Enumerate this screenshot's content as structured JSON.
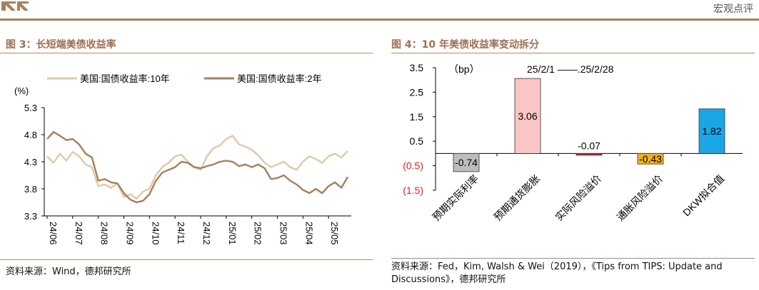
{
  "header": {
    "right_text": "宏观点评"
  },
  "figure_left": {
    "title": "图 3：长短端美债收益率",
    "source": "资料来源：Wind，德邦研究所"
  },
  "figure_right": {
    "title": "图 4：10 年美债收益率变动拆分",
    "source_line1": "资料来源：Fed，Kim, Walsh & Wei（2019），《Tips from TIPS: Update and",
    "source_line2": "Discussions》，德邦研究所"
  },
  "colors": {
    "accent": "#9b7052",
    "rule": "#a8805c",
    "series_10y": "#dfc9a5",
    "series_2y": "#a57f5b",
    "bar_grey": "#bdbdbd",
    "bar_pink": "#f9c5c5",
    "bar_red": "#e02020",
    "bar_orange": "#f2b21a",
    "bar_blue": "#1aa6e6"
  },
  "chart_data": [
    {
      "type": "line",
      "unit_label": "(%)",
      "ylim": [
        3.3,
        5.3
      ],
      "yticks": [
        "5.3",
        "4.8",
        "4.3",
        "3.8",
        "3.3"
      ],
      "ytick_values": [
        5.3,
        4.8,
        4.3,
        3.8,
        3.3
      ],
      "xticks": [
        "24/06",
        "24/07",
        "24/08",
        "24/09",
        "24/10",
        "24/11",
        "24/12",
        "25/01",
        "25/02",
        "25/03",
        "25/04",
        "25/05"
      ],
      "x": [
        "24/06",
        "24/06",
        "24/06",
        "24/06",
        "24/07",
        "24/07",
        "24/07",
        "24/07",
        "24/08",
        "24/08",
        "24/08",
        "24/08",
        "24/09",
        "24/09",
        "24/09",
        "24/09",
        "24/10",
        "24/10",
        "24/10",
        "24/10",
        "24/11",
        "24/11",
        "24/11",
        "24/11",
        "24/12",
        "24/12",
        "24/12",
        "24/12",
        "25/01",
        "25/01",
        "25/01",
        "25/01",
        "25/02",
        "25/02",
        "25/02",
        "25/02",
        "25/03",
        "25/03",
        "25/03",
        "25/03",
        "25/04",
        "25/04",
        "25/04",
        "25/04",
        "25/05",
        "25/05",
        "25/05",
        "25/05"
      ],
      "series": [
        {
          "name": "美国:国债收益率:10年",
          "values": [
            4.4,
            4.28,
            4.45,
            4.32,
            4.48,
            4.4,
            4.25,
            4.2,
            3.85,
            3.88,
            3.82,
            3.9,
            3.65,
            3.7,
            3.62,
            3.75,
            3.8,
            4.05,
            4.2,
            4.28,
            4.4,
            4.43,
            4.3,
            4.2,
            4.15,
            4.4,
            4.55,
            4.6,
            4.72,
            4.78,
            4.62,
            4.58,
            4.52,
            4.42,
            4.28,
            4.2,
            4.25,
            4.3,
            4.2,
            4.15,
            4.3,
            4.4,
            4.35,
            4.28,
            4.4,
            4.45,
            4.38,
            4.5
          ]
        },
        {
          "name": "美国:国债收益率:2年",
          "values": [
            4.72,
            4.85,
            4.78,
            4.7,
            4.72,
            4.62,
            4.45,
            4.38,
            3.95,
            3.98,
            3.92,
            3.9,
            3.72,
            3.6,
            3.55,
            3.58,
            3.7,
            3.95,
            4.1,
            4.15,
            4.2,
            4.3,
            4.28,
            4.2,
            4.18,
            4.22,
            4.25,
            4.3,
            4.32,
            4.3,
            4.22,
            4.25,
            4.2,
            4.25,
            4.18,
            3.98,
            4.0,
            4.05,
            3.95,
            3.88,
            3.78,
            3.72,
            3.8,
            3.72,
            3.85,
            3.92,
            3.82,
            4.02
          ]
        }
      ]
    },
    {
      "type": "bar",
      "unit_label": "（bp）",
      "annotation": "25/2/1 ——.25/2/28",
      "ylim": [
        -1.5,
        3.5
      ],
      "yticks": [
        "3.5",
        "2.5",
        "1.5",
        "0.5",
        "(0.5)",
        "(1.5)"
      ],
      "ytick_values": [
        3.5,
        2.5,
        1.5,
        0.5,
        -0.5,
        -1.5
      ],
      "categories": [
        "预期实际利率",
        "预期通货膨胀",
        "实际风险溢价",
        "通胀风险溢价",
        "DKW拟合值"
      ],
      "values": [
        -0.74,
        3.06,
        -0.07,
        -0.43,
        1.82
      ],
      "value_labels": [
        "-0.74",
        "3.06",
        "-0.07",
        "-0.43",
        "1.82"
      ]
    }
  ]
}
